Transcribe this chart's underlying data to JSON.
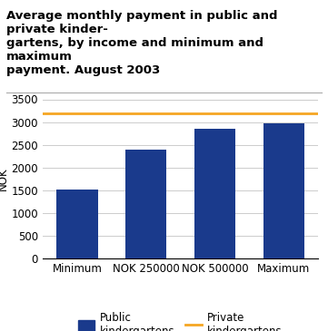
{
  "title": "Average monthly payment in public and private kinder-\ngartens, by income and minimum and maximum\npayment. August 2003",
  "categories": [
    "Minimum",
    "NOK 250000",
    "NOK 500000",
    "Maximum"
  ],
  "bar_values": [
    1520,
    2400,
    2860,
    2970
  ],
  "bar_color": "#1a3a8c",
  "private_line_value": 3185,
  "private_line_color": "#f5a623",
  "ylabel": "NOK",
  "ylim": [
    0,
    3500
  ],
  "yticks": [
    0,
    500,
    1000,
    1500,
    2000,
    2500,
    3000,
    3500
  ],
  "legend_public_label": "Public\nkindergartens",
  "legend_private_label": "Private\nkindergartens",
  "title_fontsize": 9.5,
  "tick_fontsize": 8.5,
  "ylabel_fontsize": 8.5,
  "background_color": "#ffffff"
}
